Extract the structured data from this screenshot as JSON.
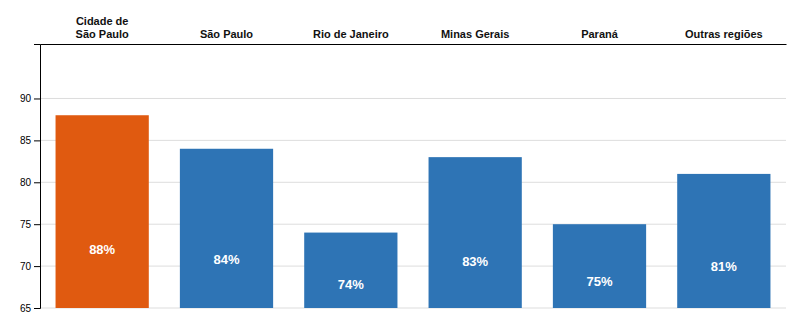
{
  "chart_data": {
    "type": "bar",
    "categories": [
      "Cidade de\nSão Paulo",
      "São Paulo",
      "Rio de Janeiro",
      "Minas Gerais",
      "Paraná",
      "Outras regiões"
    ],
    "values": [
      88,
      84,
      74,
      83,
      75,
      81
    ],
    "value_labels": [
      "88%",
      "84%",
      "74%",
      "83%",
      "75%",
      "81%"
    ],
    "colors": [
      "#E05A10",
      "#2E74B5",
      "#2E74B5",
      "#2E74B5",
      "#2E74B5",
      "#2E74B5"
    ],
    "ylim": [
      65,
      96.5
    ],
    "yticks": [
      65,
      70,
      75,
      80,
      85,
      90
    ],
    "grid": true,
    "data_labels": true
  }
}
